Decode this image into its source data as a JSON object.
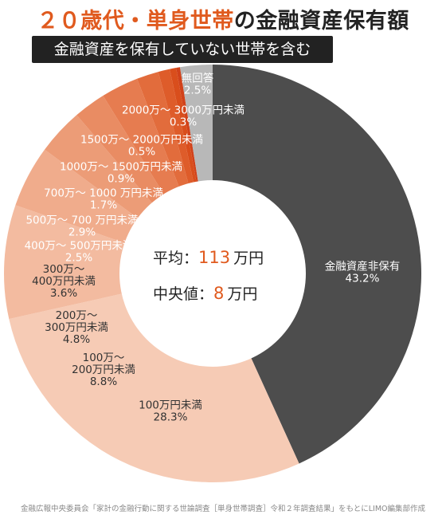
{
  "title_highlight": "２０歳代・単身世帯",
  "title_rest": "の金融資産保有額",
  "subtitle": "金融資産を保有していない世帯を含む",
  "center": {
    "mean_label": "平均",
    "mean_sep": "：",
    "mean_value": "113",
    "mean_unit": "万円",
    "median_label": "中央値",
    "median_sep": "：",
    "median_value": "8",
    "median_unit": "万円"
  },
  "source": "金融広報中央委員会「家計の金融行動に関する世論調査［単身世帯調査］令和２年調査結果」をもとにLIMO編集部作成",
  "colors": {
    "title_accent": "#e05a1e",
    "dark_slice": "#4d4d4d",
    "light_slice": "#f6cbb5"
  },
  "chart_data": {
    "type": "pie",
    "style": "donut",
    "slices": [
      {
        "label": "金融資産非保有",
        "value": 43.2,
        "value_text": "43.2%",
        "color": "#4d4d4d"
      },
      {
        "label": "100万円未満",
        "value": 28.3,
        "value_text": "28.3%",
        "color": "#f6cbb5"
      },
      {
        "label": "100万～ 200万円未満",
        "value": 8.8,
        "value_text": "8.8%",
        "color": "#f3bba0"
      },
      {
        "label": "200万～ 300万円未満",
        "value": 4.8,
        "value_text": "4.8%",
        "color": "#f0ac8c"
      },
      {
        "label": "300万～ 400万円未満",
        "value": 3.6,
        "value_text": "3.6%",
        "color": "#ec9c77"
      },
      {
        "label": "400万～ 500万円未満",
        "value": 2.5,
        "value_text": "2.5%",
        "color": "#e98c63"
      },
      {
        "label": "500万～ 700 万円未満",
        "value": 2.9,
        "value_text": "2.9%",
        "color": "#e67c50"
      },
      {
        "label": "700万～ 1000 万円未満",
        "value": 1.7,
        "value_text": "1.7%",
        "color": "#e26c3c"
      },
      {
        "label": "1000万～ 1500万円未満",
        "value": 0.9,
        "value_text": "0.9%",
        "color": "#de5c2a"
      },
      {
        "label": "1500万～ 2000万円未満",
        "value": 0.5,
        "value_text": "0.5%",
        "color": "#d94e1c"
      },
      {
        "label": "2000万～ 3000万円未満",
        "value": 0.3,
        "value_text": "0.3%",
        "color": "#d1421a"
      },
      {
        "label": "無回答",
        "value": 2.5,
        "value_text": "2.5%",
        "color": "#b8b8b8"
      }
    ]
  }
}
